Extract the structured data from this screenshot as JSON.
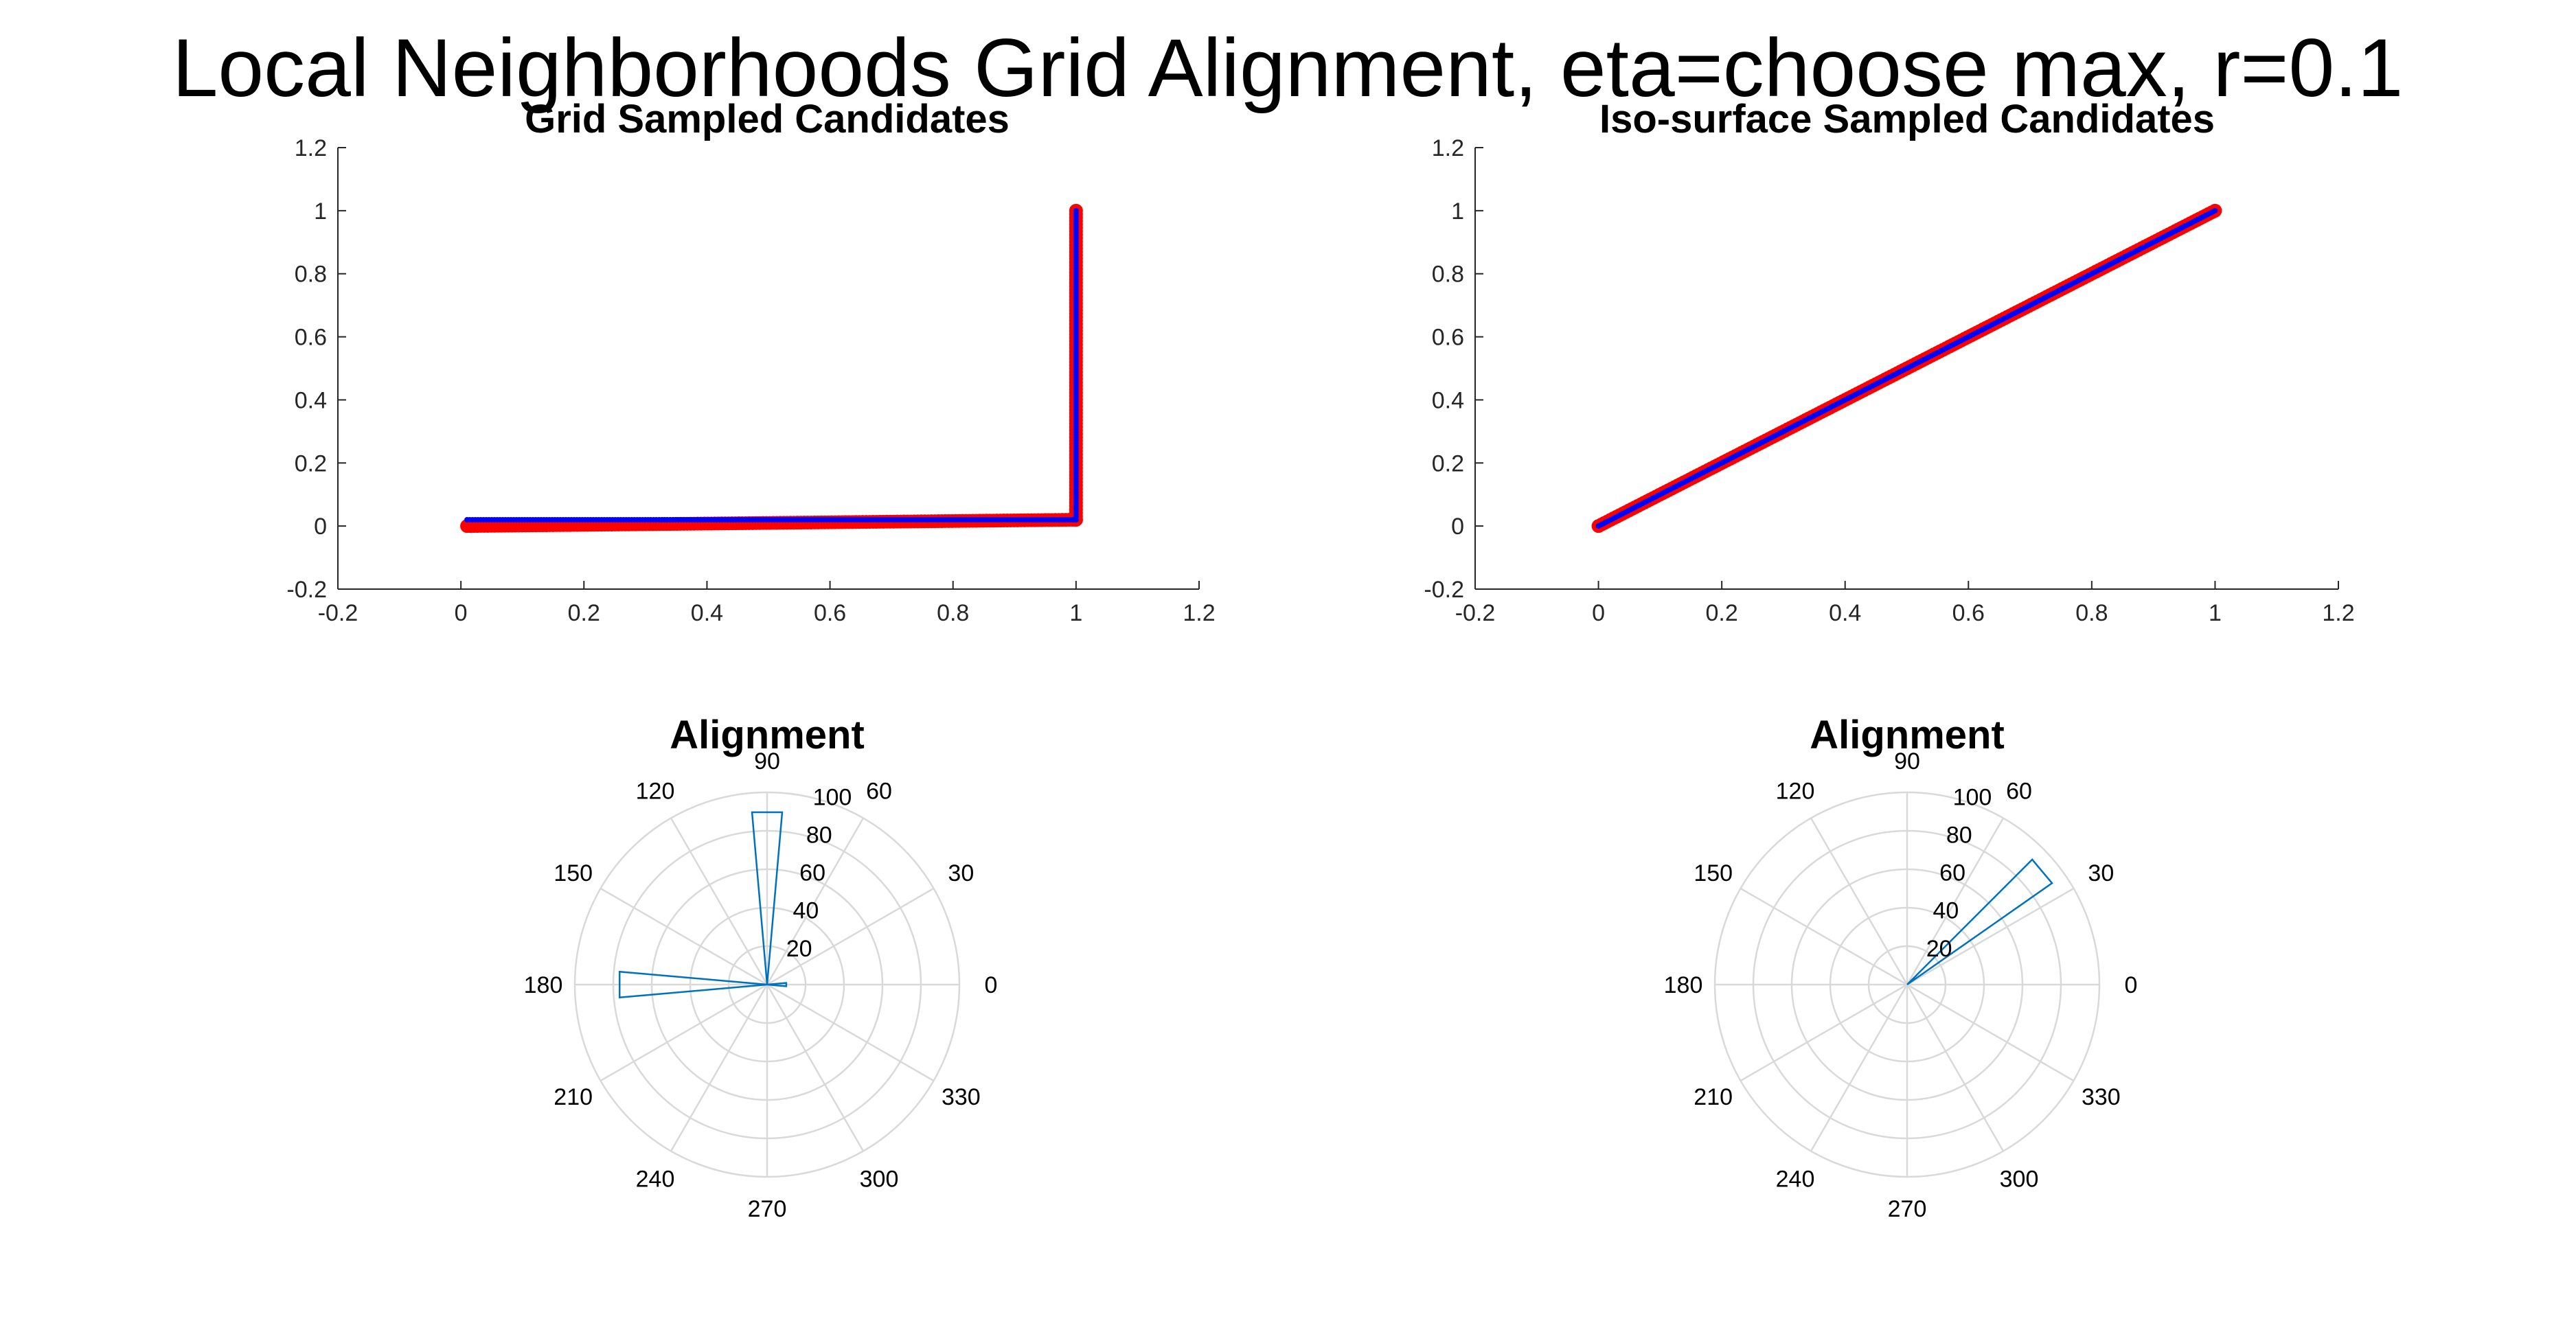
{
  "figure": {
    "title": "Local Neighborhoods Grid Alignment, eta=choose max, r=0.1"
  },
  "colors": {
    "marker_red": "#ff0000",
    "marker_blue": "#0000ff",
    "rose_blue": "#0072bd",
    "polar_grid": "#d9d9d9",
    "axis": "#262626"
  },
  "chart_data": [
    {
      "type": "scatter",
      "title": "Grid Sampled Candidates",
      "xlabel": "",
      "ylabel": "",
      "xlim": [
        -0.2,
        1.2
      ],
      "ylim": [
        -0.2,
        1.2
      ],
      "xticks": [
        "-0.2",
        "0",
        "0.2",
        "0.4",
        "0.6",
        "0.8",
        "1",
        "1.2"
      ],
      "yticks": [
        "-0.2",
        "0",
        "0.2",
        "0.4",
        "0.6",
        "0.8",
        "1",
        "1.2"
      ],
      "grid": false,
      "series": [
        {
          "marker": "red-circle",
          "color": "#ff0000",
          "segments": [
            {
              "from": [
                0.01,
                0.0
              ],
              "to": [
                1.0,
                0.02
              ]
            },
            {
              "from": [
                1.0,
                0.02
              ],
              "to": [
                1.0,
                1.0
              ]
            }
          ]
        },
        {
          "marker": "blue-dot",
          "color": "#0000ff",
          "segments": [
            {
              "from": [
                0.01,
                0.02
              ],
              "to": [
                1.0,
                0.02
              ]
            },
            {
              "from": [
                1.0,
                0.02
              ],
              "to": [
                1.0,
                1.0
              ]
            }
          ]
        }
      ]
    },
    {
      "type": "scatter",
      "title": "Iso-surface Sampled Candidates",
      "xlabel": "",
      "ylabel": "",
      "xlim": [
        -0.2,
        1.2
      ],
      "ylim": [
        -0.2,
        1.2
      ],
      "xticks": [
        "-0.2",
        "0",
        "0.2",
        "0.4",
        "0.6",
        "0.8",
        "1",
        "1.2"
      ],
      "yticks": [
        "-0.2",
        "0",
        "0.2",
        "0.4",
        "0.6",
        "0.8",
        "1",
        "1.2"
      ],
      "grid": false,
      "series": [
        {
          "marker": "red-circle",
          "color": "#ff0000",
          "segments": [
            {
              "from": [
                0.0,
                0.0
              ],
              "to": [
                1.0,
                1.0
              ]
            }
          ]
        },
        {
          "marker": "blue-dot",
          "color": "#0000ff",
          "segments": [
            {
              "from": [
                0.0,
                0.0
              ],
              "to": [
                1.0,
                1.0
              ]
            }
          ]
        }
      ]
    },
    {
      "type": "polar-histogram",
      "title": "Alignment",
      "rlim": [
        0,
        100
      ],
      "rticks": [
        "20",
        "40",
        "60",
        "80",
        "100"
      ],
      "theta_labels": [
        "0",
        "30",
        "60",
        "90",
        "120",
        "150",
        "180",
        "210",
        "240",
        "270",
        "300",
        "330"
      ],
      "grid": true,
      "bins": [
        {
          "theta_start": 85,
          "theta_end": 95,
          "count": 90
        },
        {
          "theta_start": 175,
          "theta_end": 185,
          "count": 77
        },
        {
          "theta_start": 355,
          "theta_end": 5,
          "count": 10
        }
      ]
    },
    {
      "type": "polar-histogram",
      "title": "Alignment",
      "rlim": [
        0,
        100
      ],
      "rticks": [
        "20",
        "40",
        "60",
        "80",
        "100"
      ],
      "theta_labels": [
        "0",
        "30",
        "60",
        "90",
        "120",
        "150",
        "180",
        "210",
        "240",
        "270",
        "300",
        "330"
      ],
      "grid": true,
      "bins": [
        {
          "theta_start": 35,
          "theta_end": 45,
          "count": 92
        }
      ]
    }
  ]
}
